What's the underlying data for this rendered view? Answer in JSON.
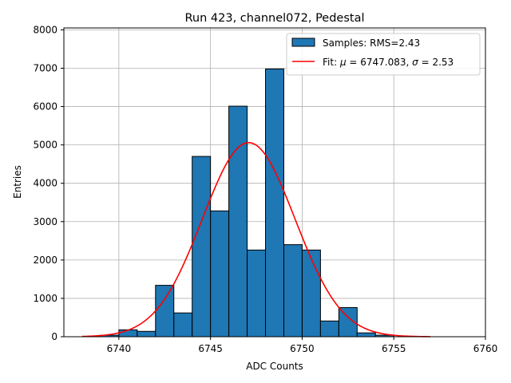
{
  "chart_data": {
    "type": "bar",
    "title": "Run 423, channel072, Pedestal",
    "xlabel": "ADC Counts",
    "ylabel": "Entries",
    "xlim": [
      6737,
      6760
    ],
    "ylim": [
      0,
      8050
    ],
    "xticks": [
      6740,
      6745,
      6750,
      6755,
      6760
    ],
    "yticks": [
      0,
      1000,
      2000,
      3000,
      4000,
      5000,
      6000,
      7000,
      8000
    ],
    "grid": true,
    "legend_position": "top-right",
    "bins": [
      {
        "x0": 6739,
        "x1": 6740,
        "value": 40
      },
      {
        "x0": 6740,
        "x1": 6741,
        "value": 180
      },
      {
        "x0": 6741,
        "x1": 6742,
        "value": 140
      },
      {
        "x0": 6742,
        "x1": 6743,
        "value": 1340
      },
      {
        "x0": 6743,
        "x1": 6744,
        "value": 620
      },
      {
        "x0": 6744,
        "x1": 6745,
        "value": 4700
      },
      {
        "x0": 6745,
        "x1": 6746,
        "value": 3280
      },
      {
        "x0": 6746,
        "x1": 6747,
        "value": 6010
      },
      {
        "x0": 6747,
        "x1": 6748,
        "value": 2260
      },
      {
        "x0": 6748,
        "x1": 6749,
        "value": 6980
      },
      {
        "x0": 6749,
        "x1": 6750,
        "value": 2400
      },
      {
        "x0": 6750,
        "x1": 6751,
        "value": 2260
      },
      {
        "x0": 6751,
        "x1": 6752,
        "value": 410
      },
      {
        "x0": 6752,
        "x1": 6753,
        "value": 760
      },
      {
        "x0": 6753,
        "x1": 6754,
        "value": 100
      },
      {
        "x0": 6754,
        "x1": 6755,
        "value": 40
      }
    ],
    "fit": {
      "mu": 6747.083,
      "sigma": 2.53,
      "amplitude": 5060,
      "x_range": [
        6738,
        6757
      ]
    },
    "legend": {
      "samples_label": "Samples: RMS=2.43",
      "fit_label_prefix": "Fit: ",
      "mu_symbol": "μ",
      "fit_label_mid": " = 6747.083, ",
      "sigma_symbol": "σ",
      "fit_label_end": " = 2.53"
    },
    "colors": {
      "bar": "#1f77b4",
      "bar_edge": "#000000",
      "fit": "#ff0000",
      "grid": "#b0b0b0"
    }
  }
}
